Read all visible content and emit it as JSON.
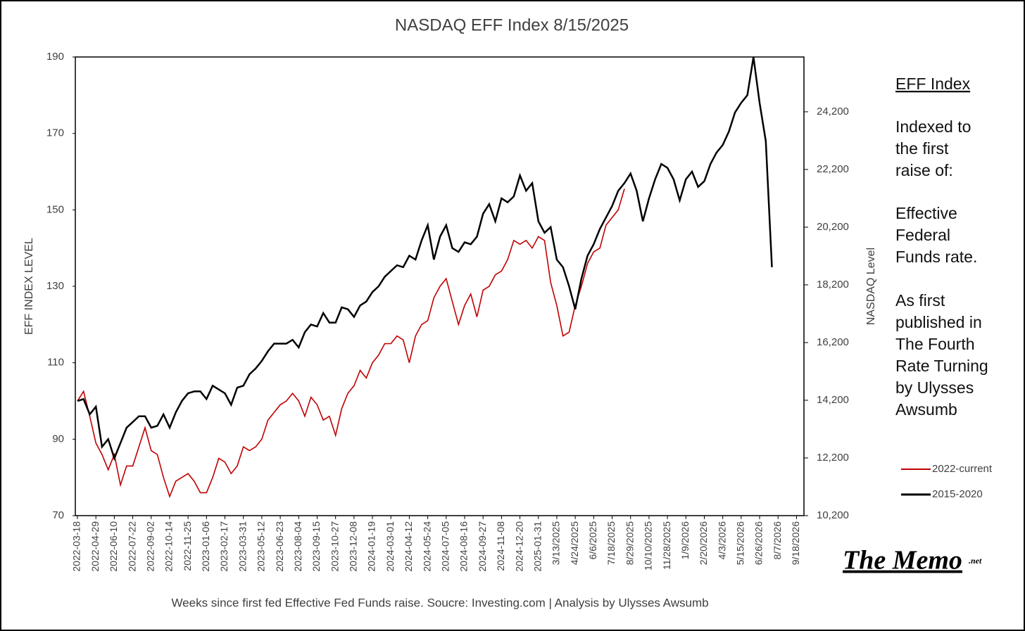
{
  "chart_data": {
    "type": "line",
    "title": "NASDAQ EFF Index    8/15/2025",
    "x_label": "Weeks since first fed Effective Fed Funds raise.   Soucre: Investing.com | Analysis by Ulysses Awsumb",
    "y_label": "EFF INDEX LEVEL",
    "y2_label": "NASDAQ Level",
    "categories": [
      "2022-03-18",
      null,
      null,
      "2022-04-29",
      null,
      null,
      "2022-06-10",
      null,
      null,
      "2022-07-22",
      null,
      null,
      "2022-09-02",
      null,
      null,
      "2022-10-14",
      null,
      null,
      "2022-11-25",
      null,
      null,
      "2023-01-06",
      null,
      null,
      "2023-02-17",
      null,
      null,
      "2023-03-31",
      null,
      null,
      "2023-05-12",
      null,
      null,
      "2023-06-23",
      null,
      null,
      "2023-08-04",
      null,
      null,
      "2023-09-15",
      null,
      null,
      "2023-10-27",
      null,
      null,
      "2023-12-08",
      null,
      null,
      "2024-01-19",
      null,
      null,
      "2024-03-01",
      null,
      null,
      "2024-04-12",
      null,
      null,
      "2024-05-24",
      null,
      null,
      "2024-07-05",
      null,
      null,
      "2024-08-16",
      null,
      null,
      "2024-09-27",
      null,
      null,
      "2024-11-08",
      null,
      null,
      "2024-12-20",
      null,
      null,
      "2025-01-31",
      null,
      null,
      "3/13/2025",
      null,
      null,
      "4/24/2025",
      null,
      null,
      "6/6/2025",
      null,
      null,
      "7/18/2025",
      null,
      null,
      "8/29/2025",
      null,
      null,
      "10/10/2025",
      null,
      null,
      "11/28/2025",
      null,
      null,
      "1/9/2026",
      null,
      null,
      "2/20/2026",
      null,
      null,
      "4/3/2026",
      null,
      null,
      "5/15/2026",
      null,
      null,
      "6/26/2026",
      null,
      null,
      "8/7/2026",
      null,
      null,
      "9/18/2026"
    ],
    "series": [
      {
        "name": "2022-current",
        "color": "#c00000",
        "values": [
          100,
          102.5,
          96,
          89,
          86,
          82,
          86,
          78,
          83,
          83,
          88,
          93,
          87,
          86,
          80,
          75,
          79,
          80,
          81,
          79,
          76,
          76,
          80,
          85,
          84,
          81,
          83,
          88,
          87,
          88,
          90,
          95,
          97,
          99,
          100,
          102,
          100,
          96,
          101,
          99,
          95,
          96,
          91,
          98,
          102,
          104,
          108,
          106,
          110,
          112,
          115,
          115,
          117,
          116,
          110,
          117,
          120,
          121,
          127,
          130,
          132,
          126,
          120,
          125,
          128,
          122,
          129,
          130,
          133,
          134,
          137,
          142,
          141,
          142,
          140,
          143,
          142,
          131,
          125,
          117,
          118,
          125,
          130,
          136,
          139,
          140,
          146,
          148,
          150,
          155.5,
          null,
          null,
          null,
          null,
          null,
          null,
          null,
          null,
          null,
          null,
          null,
          null,
          null,
          null,
          null,
          null,
          null,
          null,
          null,
          null,
          null,
          null,
          null,
          null,
          null,
          null,
          null,
          null
        ]
      },
      {
        "name": "2015-2020",
        "color": "#000000",
        "values": [
          100,
          100.5,
          96.5,
          98.5,
          88,
          90,
          85,
          89,
          93,
          94.5,
          96,
          96,
          93,
          93.5,
          96.5,
          93,
          97,
          100,
          102,
          102.5,
          102.5,
          100.5,
          104,
          103,
          102,
          99,
          103.5,
          104,
          107,
          108.5,
          110.5,
          113,
          115,
          115,
          115,
          116,
          114,
          118,
          120,
          119.5,
          123,
          120.5,
          120.5,
          124.5,
          124,
          122,
          125,
          126,
          128.5,
          130,
          132.5,
          134,
          135.5,
          135,
          138,
          137,
          142,
          146,
          137,
          143,
          146,
          140,
          139,
          141.5,
          141,
          143,
          149,
          151.5,
          147,
          153,
          152,
          153.5,
          159,
          155,
          157,
          147,
          144,
          145.5,
          137,
          135,
          130,
          124,
          132,
          138,
          141,
          145,
          148,
          151,
          155,
          157,
          159.5,
          155,
          147,
          153,
          158,
          162,
          161,
          158,
          152.5,
          158,
          160,
          156,
          157.5,
          162,
          165,
          167,
          170.5,
          175.5,
          178,
          180,
          190,
          178,
          168,
          135,
          null,
          null,
          null,
          null
        ]
      }
    ],
    "ylim": [
      70,
      190
    ],
    "yticks": [
      70,
      90,
      110,
      130,
      150,
      170,
      190
    ],
    "y2lim": [
      10200,
      26100
    ],
    "y2ticks": [
      {
        "value": 10200,
        "label": "10,200"
      },
      {
        "value": 12200,
        "label": "12,200"
      },
      {
        "value": 14200,
        "label": "14,200"
      },
      {
        "value": 16200,
        "label": "16,200"
      },
      {
        "value": 18200,
        "label": "18,200"
      },
      {
        "value": 20200,
        "label": "20,200"
      },
      {
        "value": 22200,
        "label": "22,200"
      },
      {
        "value": 24200,
        "label": "24,200"
      }
    ],
    "legend": "right",
    "annotations": {
      "heading": "EFF Index",
      "lines": [
        "Indexed to",
        "the first",
        "raise of:",
        "Effective",
        "Federal",
        "Funds rate.",
        "As first",
        "published in",
        "The Fourth",
        "Rate Turning",
        "by Ulysses",
        "Awsumb"
      ],
      "logo": "The Memo",
      "logo_suffix": ".net"
    }
  }
}
